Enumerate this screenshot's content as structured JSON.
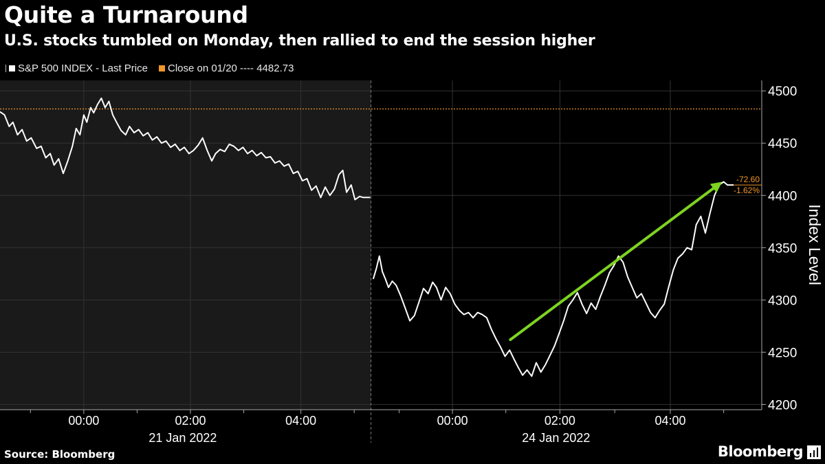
{
  "title": "Quite a Turnaround",
  "subtitle": "U.S. stocks tumbled on Monday, then rallied to end the session higher",
  "legend": {
    "series_label": "S&P 500 INDEX - Last Price",
    "reference_label": "Close on 01/20 ---- 4482.73"
  },
  "source": "Source: Bloomberg",
  "brand": "Bloomberg",
  "brand_icon": "bar-chart-icon",
  "colors": {
    "background": "#000000",
    "shaded_session": "#1a1a1a",
    "series": "#ffffff",
    "reference": "#f0962a",
    "arrow": "#7ed321",
    "grid": "#333333"
  },
  "chart_data": {
    "type": "line",
    "ylabel": "Index Level",
    "ylim": [
      4195,
      4510
    ],
    "yticks": [
      4200,
      4250,
      4300,
      4350,
      4400,
      4450,
      4500
    ],
    "xlim": [
      0,
      100
    ],
    "x_ticks": [
      {
        "x": 11,
        "label": "00:00"
      },
      {
        "x": 25,
        "label": "02:00"
      },
      {
        "x": 39.5,
        "label": "04:00"
      },
      {
        "x": 59.4,
        "label": "00:00"
      },
      {
        "x": 73.5,
        "label": "02:00"
      },
      {
        "x": 88,
        "label": "04:00"
      }
    ],
    "x_minor_ticks": [
      4,
      18,
      32,
      46.5,
      52.4,
      66.4,
      80.7,
      95
    ],
    "date_labels": [
      {
        "x": 24,
        "label": "21 Jan 2022"
      },
      {
        "x": 73,
        "label": "24 Jan 2022"
      }
    ],
    "session_divider_x": 48.7,
    "reference": {
      "name": "Close on 01/20",
      "value": 4482.73
    },
    "annotations": {
      "change": "-72.60",
      "change_pct": "-1.62%",
      "last_value": 4410
    },
    "arrow": {
      "x0": 67,
      "y0": 4262,
      "x1": 94.8,
      "y1": 4413
    },
    "series": [
      {
        "name": "S&P 500 INDEX - Last Price",
        "points": [
          [
            0,
            4480
          ],
          [
            0.6,
            4477
          ],
          [
            1.2,
            4466
          ],
          [
            1.7,
            4470
          ],
          [
            2.3,
            4458
          ],
          [
            2.9,
            4463
          ],
          [
            3.5,
            4452
          ],
          [
            4.1,
            4455
          ],
          [
            4.8,
            4445
          ],
          [
            5.4,
            4447
          ],
          [
            6,
            4436
          ],
          [
            6.6,
            4440
          ],
          [
            7.1,
            4429
          ],
          [
            7.7,
            4435
          ],
          [
            8.3,
            4421
          ],
          [
            8.9,
            4433
          ],
          [
            9.5,
            4447
          ],
          [
            10,
            4464
          ],
          [
            10.5,
            4458
          ],
          [
            11,
            4477
          ],
          [
            11.4,
            4470
          ],
          [
            11.9,
            4484
          ],
          [
            12.3,
            4479
          ],
          [
            12.8,
            4487
          ],
          [
            13.3,
            4493
          ],
          [
            13.8,
            4484
          ],
          [
            14.3,
            4490
          ],
          [
            14.8,
            4477
          ],
          [
            15.3,
            4470
          ],
          [
            15.9,
            4462
          ],
          [
            16.5,
            4458
          ],
          [
            17,
            4466
          ],
          [
            17.6,
            4460
          ],
          [
            18.2,
            4463
          ],
          [
            18.8,
            4457
          ],
          [
            19.4,
            4460
          ],
          [
            20,
            4453
          ],
          [
            20.6,
            4456
          ],
          [
            21.2,
            4450
          ],
          [
            21.8,
            4452
          ],
          [
            22.4,
            4446
          ],
          [
            23,
            4449
          ],
          [
            23.6,
            4443
          ],
          [
            24.2,
            4446
          ],
          [
            24.8,
            4440
          ],
          [
            25.4,
            4443
          ],
          [
            26,
            4448
          ],
          [
            26.6,
            4455
          ],
          [
            27.2,
            4443
          ],
          [
            27.8,
            4433
          ],
          [
            28.3,
            4440
          ],
          [
            28.9,
            4444
          ],
          [
            29.5,
            4442
          ],
          [
            30.1,
            4449
          ],
          [
            30.7,
            4447
          ],
          [
            31.3,
            4443
          ],
          [
            31.9,
            4446
          ],
          [
            32.5,
            4440
          ],
          [
            33.1,
            4443
          ],
          [
            33.7,
            4438
          ],
          [
            34.3,
            4441
          ],
          [
            34.9,
            4436
          ],
          [
            35.5,
            4437
          ],
          [
            36.1,
            4431
          ],
          [
            36.7,
            4433
          ],
          [
            37.3,
            4428
          ],
          [
            37.9,
            4430
          ],
          [
            38.5,
            4421
          ],
          [
            39.1,
            4423
          ],
          [
            39.7,
            4414
          ],
          [
            40.3,
            4416
          ],
          [
            40.9,
            4405
          ],
          [
            41.5,
            4409
          ],
          [
            42.1,
            4398
          ],
          [
            42.7,
            4408
          ],
          [
            43.3,
            4400
          ],
          [
            43.9,
            4406
          ],
          [
            44.5,
            4420
          ],
          [
            45,
            4424
          ],
          [
            45.5,
            4403
          ],
          [
            46.1,
            4410
          ],
          [
            46.6,
            4396
          ],
          [
            47.2,
            4399
          ],
          [
            47.7,
            4398
          ],
          [
            48.6,
            4398
          ],
          [
            49,
            4320
          ],
          [
            49.4,
            4330
          ],
          [
            49.8,
            4342
          ],
          [
            50.2,
            4327
          ],
          [
            50.6,
            4320
          ],
          [
            51,
            4312
          ],
          [
            51.5,
            4318
          ],
          [
            52,
            4314
          ],
          [
            52.6,
            4304
          ],
          [
            53.2,
            4292
          ],
          [
            53.8,
            4280
          ],
          [
            54.4,
            4285
          ],
          [
            55,
            4298
          ],
          [
            55.6,
            4311
          ],
          [
            56.2,
            4306
          ],
          [
            56.8,
            4317
          ],
          [
            57.3,
            4312
          ],
          [
            57.9,
            4300
          ],
          [
            58.5,
            4312
          ],
          [
            59.1,
            4306
          ],
          [
            59.7,
            4296
          ],
          [
            60.3,
            4290
          ],
          [
            60.9,
            4286
          ],
          [
            61.5,
            4288
          ],
          [
            62.1,
            4283
          ],
          [
            62.7,
            4288
          ],
          [
            63.3,
            4286
          ],
          [
            63.9,
            4283
          ],
          [
            64.5,
            4272
          ],
          [
            65.1,
            4263
          ],
          [
            65.7,
            4255
          ],
          [
            66.3,
            4246
          ],
          [
            66.9,
            4252
          ],
          [
            67.5,
            4243
          ],
          [
            68,
            4236
          ],
          [
            68.6,
            4228
          ],
          [
            69.2,
            4233
          ],
          [
            69.8,
            4227
          ],
          [
            70.4,
            4240
          ],
          [
            71,
            4231
          ],
          [
            71.6,
            4238
          ],
          [
            72.2,
            4247
          ],
          [
            72.8,
            4256
          ],
          [
            73.4,
            4268
          ],
          [
            74,
            4280
          ],
          [
            74.6,
            4294
          ],
          [
            75.2,
            4300
          ],
          [
            75.8,
            4307
          ],
          [
            76.4,
            4296
          ],
          [
            77,
            4287
          ],
          [
            77.6,
            4297
          ],
          [
            78.2,
            4291
          ],
          [
            78.8,
            4303
          ],
          [
            79.4,
            4314
          ],
          [
            80,
            4326
          ],
          [
            80.6,
            4333
          ],
          [
            81.2,
            4342
          ],
          [
            81.8,
            4336
          ],
          [
            82.4,
            4322
          ],
          [
            83,
            4312
          ],
          [
            83.6,
            4302
          ],
          [
            84.2,
            4306
          ],
          [
            84.8,
            4297
          ],
          [
            85.4,
            4288
          ],
          [
            86,
            4283
          ],
          [
            86.6,
            4290
          ],
          [
            87.2,
            4296
          ],
          [
            87.8,
            4313
          ],
          [
            88.4,
            4329
          ],
          [
            89,
            4340
          ],
          [
            89.6,
            4344
          ],
          [
            90.2,
            4350
          ],
          [
            90.8,
            4348
          ],
          [
            91.4,
            4372
          ],
          [
            92,
            4380
          ],
          [
            92.6,
            4364
          ],
          [
            93.2,
            4383
          ],
          [
            93.8,
            4400
          ],
          [
            94.4,
            4410
          ],
          [
            95,
            4413
          ],
          [
            95.5,
            4410
          ],
          [
            96.3,
            4410
          ]
        ]
      }
    ]
  }
}
